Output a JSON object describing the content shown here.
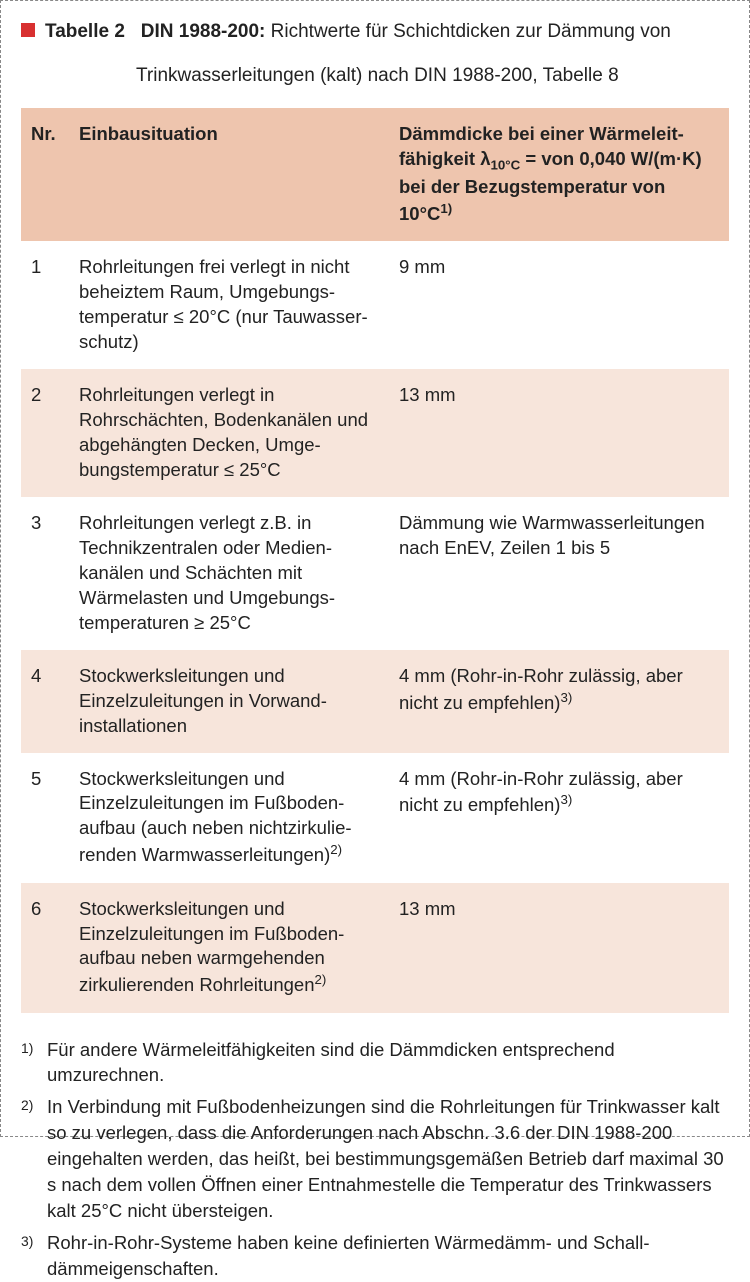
{
  "title": {
    "label": "Tabelle 2",
    "standard": "DIN 1988-200:",
    "description_line1": "Richtwerte für Schichtdicken zur Dämmung von",
    "description_line2": "Trinkwasserleitungen (kalt) nach DIN 1988-200, Tabelle 8"
  },
  "table": {
    "headers": {
      "nr": "Nr.",
      "situation": "Einbausituation",
      "thickness_l1": "Dämmdicke bei einer Wärmeleit-",
      "thickness_l2a": "fähigkeit λ",
      "thickness_l2_sub": "10°C",
      "thickness_l2b": " = von 0,040 W/(m·K)",
      "thickness_l3": "bei der Bezugstemperatur von",
      "thickness_l4a": "10°C",
      "thickness_l4_sup": "1)"
    },
    "rows": [
      {
        "nr": "1",
        "situation": "Rohrleitungen frei verlegt in nicht beheiztem Raum, Umgebungs­temperatur ≤ 20°C (nur Tauwasser­schutz)",
        "thickness": "9 mm",
        "sup": ""
      },
      {
        "nr": "2",
        "situation": "Rohrleitungen verlegt in Rohrschächten, Bodenkanälen und abgehängten Decken, Umge­bungstemperatur ≤ 25°C",
        "thickness": "13 mm",
        "sup": ""
      },
      {
        "nr": "3",
        "situation": "Rohrleitungen verlegt z.B. in Technikzentralen oder Medien­kanälen und Schächten mit Wärmelasten und Umgebungs­temperaturen ≥ 25°C",
        "thickness": "Dämmung wie Warmwasserleitungen nach EnEV, Zeilen 1 bis 5",
        "sup": ""
      },
      {
        "nr": "4",
        "situation": "Stockwerksleitungen und Einzelzuleitungen in Vorwand­installationen",
        "thickness": "4 mm (Rohr-in-Rohr zulässig, aber nicht zu empfehlen)",
        "sup": "3)"
      },
      {
        "nr": "5",
        "situation_a": "Stockwerksleitungen und Einzelzuleitungen im Fußboden­aufbau (auch neben nichtzirkulie­renden Warmwasserleitungen)",
        "situation_sup": "2)",
        "thickness": "4 mm (Rohr-in-Rohr zulässig, aber nicht zu empfehlen)",
        "sup": "3)"
      },
      {
        "nr": "6",
        "situation_a": "Stockwerksleitungen und Einzelzuleitungen im Fußboden­aufbau neben warmgehenden zirkulierenden Rohrleitungen",
        "situation_sup": "2)",
        "thickness": "13 mm",
        "sup": ""
      }
    ]
  },
  "footnotes": [
    {
      "marker": "1)",
      "text": "Für andere Wärmeleitfähigkeiten sind die Dämmdicken entsprechend umzurechnen."
    },
    {
      "marker": "2)",
      "text": "In Verbindung mit Fußbodenheizungen sind die Rohrleitungen für Trinkwasser kalt so zu verlegen, dass die Anforderungen nach Abschn. 3.6 der DIN 1988-200 eingehalten werden, das heißt, bei bestimmungsgemäßen Betrieb darf maximal 30 s nach dem vollen Öffnen einer Entnahmestelle die Temperatur des Trinkwassers kalt 25°C nicht übersteigen."
    },
    {
      "marker": "3)",
      "text": "Rohr-in-Rohr-Systeme haben keine definierten Wärmedämm- und Schall­dämmeigenschaften."
    }
  ],
  "colors": {
    "accent": "#d83030",
    "header_bg": "#eec5ae",
    "row_tint": "#f7e5db",
    "text": "#222222",
    "border": "#888888"
  }
}
